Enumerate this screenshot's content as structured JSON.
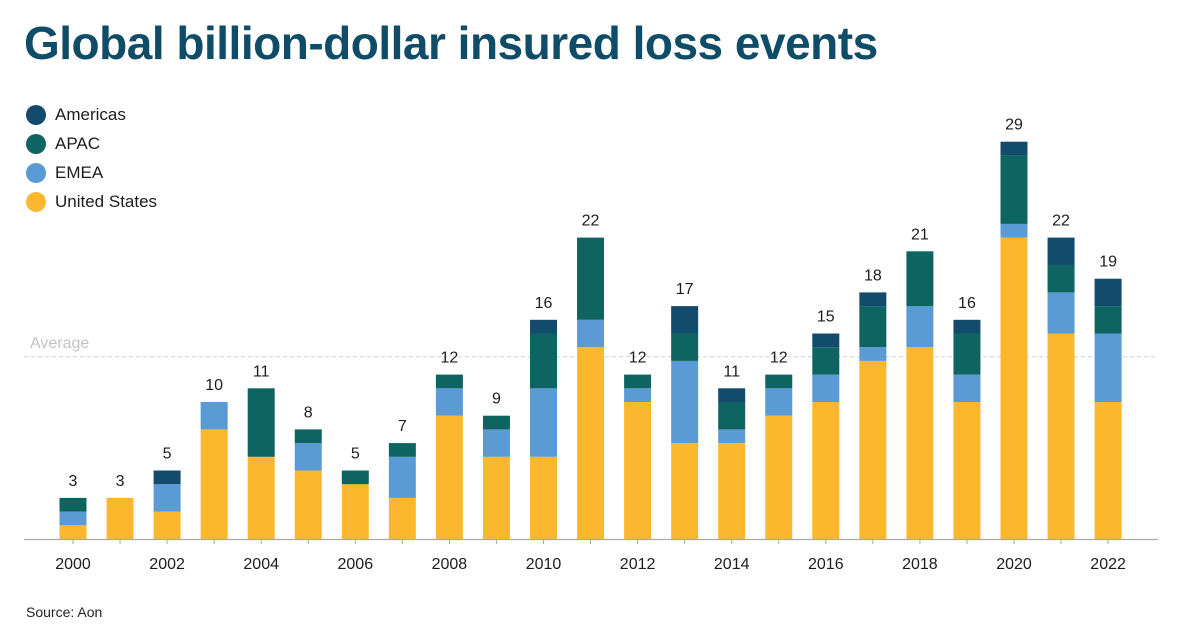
{
  "title": "Global billion-dollar insured loss events",
  "source": "Source: Aon",
  "legend": [
    {
      "name": "Americas",
      "color": "#124b6b"
    },
    {
      "name": "APAC",
      "color": "#0e6461"
    },
    {
      "name": "EMEA",
      "color": "#5a9bd6"
    },
    {
      "name": "United States",
      "color": "#fbb82f"
    }
  ],
  "chart_data": {
    "type": "bar",
    "stacked": true,
    "title": "Global billion-dollar insured loss events",
    "xlabel": "",
    "ylabel": "",
    "ylim": [
      0,
      29
    ],
    "categories": [
      "2000",
      "2001",
      "2002",
      "2003",
      "2004",
      "2005",
      "2006",
      "2007",
      "2008",
      "2009",
      "2010",
      "2011",
      "2012",
      "2013",
      "2014",
      "2015",
      "2016",
      "2017",
      "2018",
      "2019",
      "2020",
      "2021",
      "2022"
    ],
    "x_tick_labels": [
      "2000",
      "2002",
      "2004",
      "2006",
      "2008",
      "2010",
      "2012",
      "2014",
      "2016",
      "2018",
      "2020",
      "2022"
    ],
    "totals": [
      3,
      3,
      5,
      10,
      11,
      8,
      5,
      7,
      12,
      9,
      16,
      22,
      12,
      17,
      11,
      12,
      15,
      18,
      21,
      16,
      29,
      22,
      19
    ],
    "series": [
      {
        "name": "United States",
        "color": "#fbb82f",
        "values": [
          1,
          3,
          2,
          8,
          6,
          5,
          4,
          3,
          9,
          6,
          6,
          14,
          10,
          7,
          7,
          9,
          10,
          13,
          14,
          10,
          22,
          15,
          10
        ]
      },
      {
        "name": "EMEA",
        "color": "#5a9bd6",
        "values": [
          1,
          0,
          2,
          2,
          0,
          2,
          0,
          3,
          2,
          2,
          5,
          2,
          1,
          6,
          1,
          2,
          2,
          1,
          3,
          2,
          1,
          3,
          5
        ]
      },
      {
        "name": "APAC",
        "color": "#0e6461",
        "values": [
          1,
          0,
          0,
          0,
          5,
          1,
          1,
          1,
          1,
          1,
          4,
          6,
          1,
          2,
          2,
          1,
          2,
          3,
          4,
          3,
          5,
          2,
          2
        ]
      },
      {
        "name": "Americas",
        "color": "#124b6b",
        "values": [
          0,
          0,
          1,
          0,
          0,
          0,
          0,
          0,
          0,
          0,
          1,
          0,
          0,
          2,
          1,
          0,
          1,
          1,
          0,
          1,
          1,
          2,
          2
        ]
      }
    ],
    "average": {
      "label": "Average",
      "value": 13.3
    },
    "grid": false,
    "legend_position": "top-left"
  }
}
